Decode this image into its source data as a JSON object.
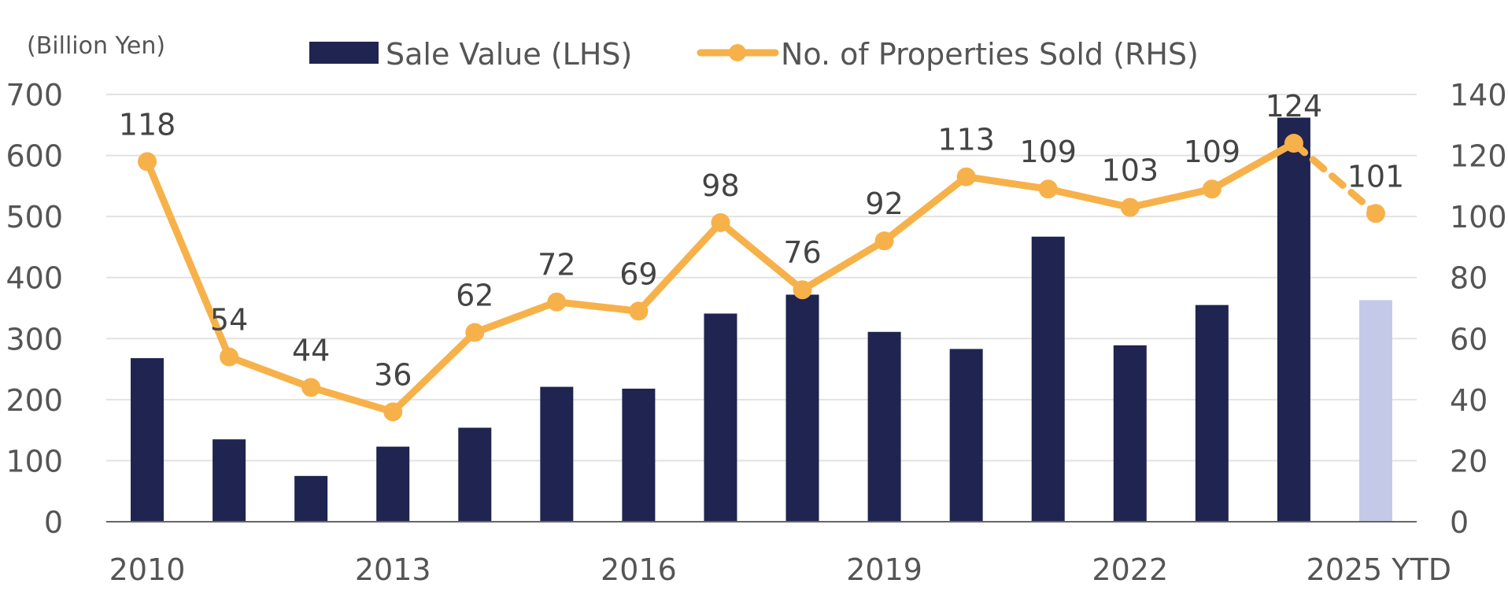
{
  "chart_data": {
    "type": "bar",
    "categories": [
      "2010",
      "2011",
      "2012",
      "2013",
      "2014",
      "2015",
      "2016",
      "2017",
      "2018",
      "2019",
      "2020",
      "2021",
      "2022",
      "2023",
      "2024",
      "2025 YTD"
    ],
    "x_tick_labels": [
      "2010",
      "2013",
      "2016",
      "2019",
      "2022",
      "2025 YTD"
    ],
    "unit_label": "(Billion Yen)",
    "y_left": {
      "min": 0,
      "max": 700,
      "ticks": [
        0,
        100,
        200,
        300,
        400,
        500,
        600,
        700
      ]
    },
    "y_right": {
      "min": 0,
      "max": 140,
      "ticks": [
        0,
        20,
        40,
        60,
        80,
        100,
        120,
        140
      ]
    },
    "grid": true,
    "legend_position": "top",
    "series": [
      {
        "name": "Sale Value (LHS)",
        "type": "bar",
        "axis": "left",
        "color": "#1f2550",
        "highlight_color": "#c5c9e8",
        "highlight_index": 15,
        "values": [
          268,
          135,
          75,
          123,
          154,
          221,
          218,
          341,
          372,
          311,
          283,
          467,
          289,
          355,
          662,
          363
        ]
      },
      {
        "name": "No. of Properties Sold (RHS)",
        "type": "line",
        "axis": "right",
        "color": "#f7b14a",
        "dashed_from_index": 14,
        "values": [
          118,
          54,
          44,
          36,
          62,
          72,
          69,
          98,
          76,
          92,
          113,
          109,
          103,
          109,
          124,
          101
        ],
        "labels": [
          "118",
          "54",
          "44",
          "36",
          "62",
          "72",
          "69",
          "98",
          "76",
          "92",
          "113",
          "109",
          "103",
          "109",
          "124",
          "101"
        ]
      }
    ]
  }
}
